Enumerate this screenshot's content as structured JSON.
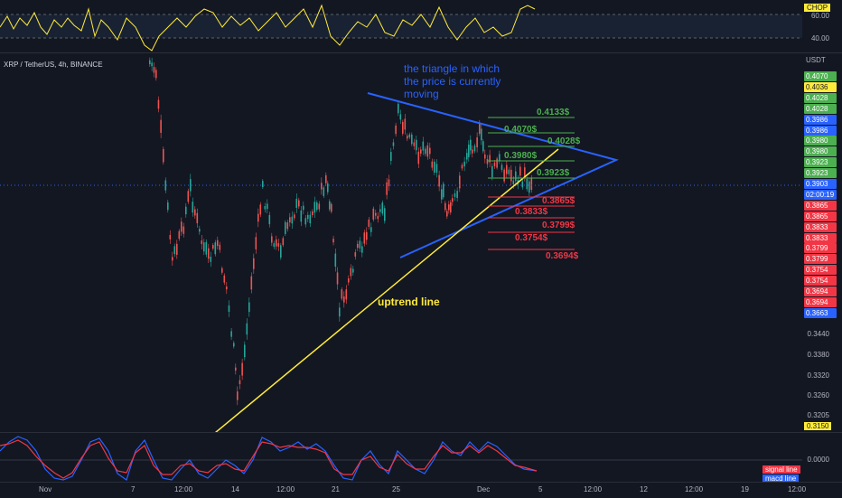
{
  "chart": {
    "symbol_line": "XRP / TetherUS, 4h, BINANCE",
    "currency": "USDT",
    "current_price": "0.3903",
    "countdown": "02:00:19"
  },
  "chop": {
    "label": "CHOP",
    "levels": [
      "60.00",
      "40.00"
    ]
  },
  "price_axis": {
    "ticks": [
      "0.3440",
      "0.3380",
      "0.3320",
      "0.3260",
      "0.3205"
    ],
    "tags": [
      {
        "text": "0.4070",
        "bg": "#4caf50",
        "fg": "#ffffff"
      },
      {
        "text": "0.4036",
        "bg": "#ffeb3b",
        "fg": "#131722"
      },
      {
        "text": "0.4028",
        "bg": "#4caf50",
        "fg": "#ffffff"
      },
      {
        "text": "0.4028",
        "bg": "#4caf50",
        "fg": "#ffffff"
      },
      {
        "text": "0.3986",
        "bg": "#2962ff",
        "fg": "#ffffff"
      },
      {
        "text": "0.3986",
        "bg": "#2962ff",
        "fg": "#ffffff"
      },
      {
        "text": "0.3980",
        "bg": "#4caf50",
        "fg": "#ffffff"
      },
      {
        "text": "0.3980",
        "bg": "#4caf50",
        "fg": "#ffffff"
      },
      {
        "text": "0.3923",
        "bg": "#4caf50",
        "fg": "#ffffff"
      },
      {
        "text": "0.3923",
        "bg": "#4caf50",
        "fg": "#ffffff"
      },
      {
        "text": "0.3903",
        "bg": "#2962ff",
        "fg": "#ffffff"
      },
      {
        "text": "02:00:19",
        "bg": "#2962ff",
        "fg": "#ffffff"
      },
      {
        "text": "0.3865",
        "bg": "#f23645",
        "fg": "#ffffff"
      },
      {
        "text": "0.3865",
        "bg": "#f23645",
        "fg": "#ffffff"
      },
      {
        "text": "0.3833",
        "bg": "#f23645",
        "fg": "#ffffff"
      },
      {
        "text": "0.3833",
        "bg": "#f23645",
        "fg": "#ffffff"
      },
      {
        "text": "0.3799",
        "bg": "#f23645",
        "fg": "#ffffff"
      },
      {
        "text": "0.3799",
        "bg": "#f23645",
        "fg": "#ffffff"
      },
      {
        "text": "0.3754",
        "bg": "#f23645",
        "fg": "#ffffff"
      },
      {
        "text": "0.3754",
        "bg": "#f23645",
        "fg": "#ffffff"
      },
      {
        "text": "0.3694",
        "bg": "#f23645",
        "fg": "#ffffff"
      },
      {
        "text": "0.3694",
        "bg": "#f23645",
        "fg": "#ffffff"
      },
      {
        "text": "0.3663",
        "bg": "#2962ff",
        "fg": "#ffffff"
      }
    ],
    "low_tag": "0.3150"
  },
  "annotations": {
    "triangle_note": [
      "the triangle in which",
      "the price is currently",
      "moving"
    ],
    "uptrend": "uptrend line"
  },
  "levels_green": [
    "0.4133$",
    "0.4070$",
    "0.4028$",
    "0.3980$",
    "0.3923$"
  ],
  "levels_red": [
    "0.3865$",
    "0.3833$",
    "0.3799$",
    "0.3754$",
    "0.3694$"
  ],
  "oscillator": {
    "zero": "0.0000",
    "legend": [
      "signal line",
      "macd line"
    ]
  },
  "x_axis": [
    "Nov",
    "7",
    "12:00",
    "14",
    "12:00",
    "21",
    "25",
    "Dec",
    "5",
    "12:00",
    "12",
    "12:00",
    "19",
    "12:00"
  ]
}
